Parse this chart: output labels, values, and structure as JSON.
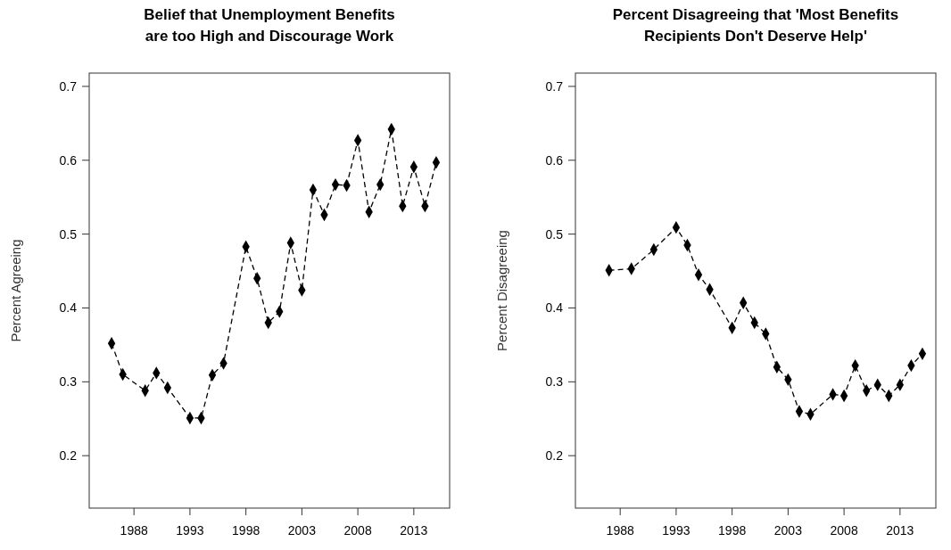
{
  "chart_data": [
    {
      "type": "line",
      "title": "Belief that Unemployment Benefits\nare too High and Discourage Work",
      "ylabel": "Percent Agreeing",
      "marker": "diamond",
      "line_style": "dashed",
      "xlim": [
        1984,
        2016.2
      ],
      "xticks": [
        1988,
        1993,
        1998,
        2003,
        2008,
        2013
      ],
      "ylim": [
        0.129,
        0.718
      ],
      "yticks": [
        0.2,
        0.3,
        0.4,
        0.5,
        0.6,
        0.7
      ],
      "series": [
        {
          "color": "#000000",
          "x": [
            1986,
            1987,
            1989,
            1990,
            1991,
            1993,
            1994,
            1995,
            1996,
            1998,
            1999,
            2000,
            2001,
            2002,
            2003,
            2004,
            2005,
            2006,
            2007,
            2008,
            2009,
            2010,
            2011,
            2012,
            2013,
            2014,
            2015
          ],
          "values": [
            0.352,
            0.31,
            0.288,
            0.312,
            0.292,
            0.251,
            0.251,
            0.309,
            0.325,
            0.483,
            0.44,
            0.38,
            0.395,
            0.488,
            0.424,
            0.56,
            0.526,
            0.567,
            0.566,
            0.627,
            0.53,
            0.567,
            0.642,
            0.538,
            0.591,
            0.538,
            0.597
          ]
        }
      ]
    },
    {
      "type": "line",
      "title": "Percent Disagreeing that 'Most Benefits\nRecipients Don't Deserve Help'",
      "ylabel": "Percent Disagreeing",
      "marker": "diamond",
      "line_style": "dashed",
      "xlim": [
        1984,
        2016.2
      ],
      "xticks": [
        1988,
        1993,
        1998,
        2003,
        2008,
        2013
      ],
      "ylim": [
        0.129,
        0.718
      ],
      "yticks": [
        0.2,
        0.3,
        0.4,
        0.5,
        0.6,
        0.7
      ],
      "series": [
        {
          "color": "#000000",
          "x": [
            1987,
            1989,
            1991,
            1993,
            1994,
            1995,
            1996,
            1998,
            1999,
            2000,
            2001,
            2002,
            2003,
            2004,
            2005,
            2007,
            2008,
            2009,
            2010,
            2011,
            2012,
            2013,
            2014,
            2015
          ],
          "values": [
            0.451,
            0.453,
            0.479,
            0.509,
            0.485,
            0.445,
            0.425,
            0.373,
            0.407,
            0.38,
            0.365,
            0.32,
            0.303,
            0.26,
            0.256,
            0.283,
            0.281,
            0.322,
            0.288,
            0.296,
            0.281,
            0.296,
            0.322,
            0.338
          ]
        }
      ]
    }
  ]
}
